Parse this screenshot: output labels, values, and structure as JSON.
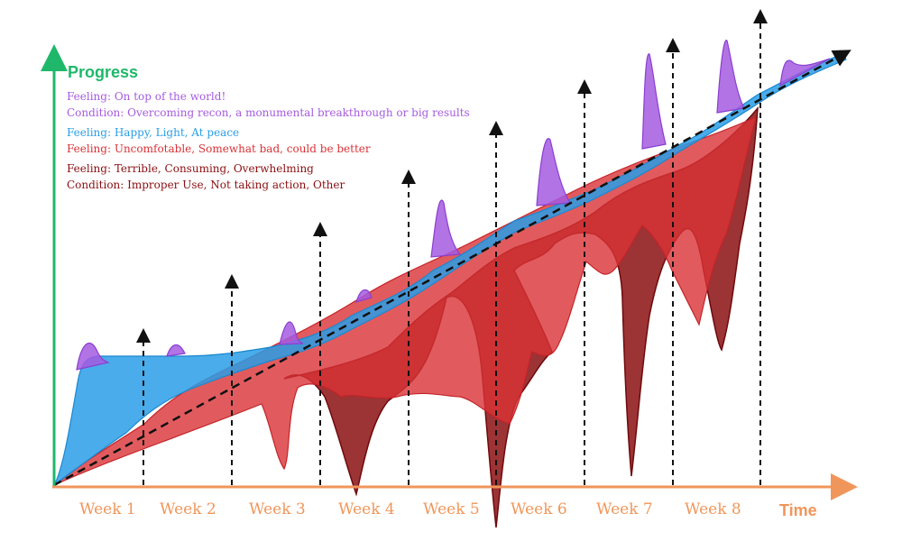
{
  "colors": {
    "green": "#1fb86a",
    "orange": "#f0965a",
    "purple": "#a55be0",
    "blue": "#2a9ee6",
    "red": "#d93236",
    "dark_red": "#8b0f12",
    "black": "#111111"
  },
  "axes": {
    "y_label": "Progress",
    "x_label": "Time"
  },
  "weeks": [
    "Week 1",
    "Week 2",
    "Week 3",
    "Week 4",
    "Week 5",
    "Week 6",
    "Week 7",
    "Week 8"
  ],
  "legend": {
    "top": {
      "feeling_key": "Feeling:",
      "feeling_text": " On top of the world!",
      "condition_text": "Condition: Overcoming recon, a monumental breakthrough or big results"
    },
    "happy": {
      "feeling_key": "Feeling:",
      "feeling_text": " Happy, Light, At peace"
    },
    "uncomfortable": {
      "feeling_key": "Feeling:",
      "feeling_text": "  Uncomfotable, Somewhat bad, could be better"
    },
    "terrible": {
      "feeling_text": "Feeling: Terrible, Consuming, Overwhelming",
      "condition_text": "Condition: Improper Use, Not taking action, Other"
    }
  }
}
